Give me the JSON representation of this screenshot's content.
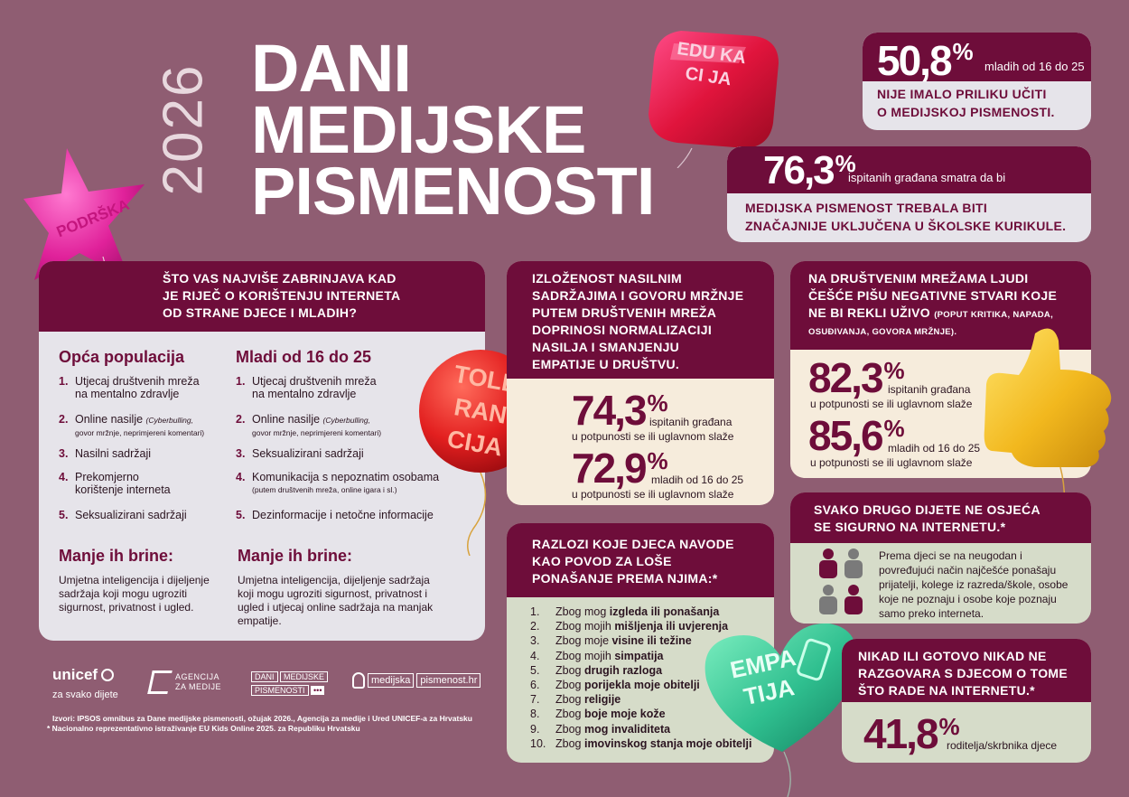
{
  "title": {
    "year": "2026",
    "line1": "DANI",
    "line2": "MEDIJSKE",
    "line3": "PISMENOSTI"
  },
  "balloons": {
    "edukacija": "EDU KA CI JA",
    "podrska": "PODRŠKA",
    "tolerancija": "TOLE RAN CIJA",
    "empatija": "EMPA TIJA"
  },
  "stat1": {
    "value": "50,8",
    "unit": "%",
    "desc": "mladih od 16 do 25",
    "text1": "NIJE IMALO PRILIKU UČITI",
    "text2": "O MEDIJSKOJ PISMENOSTI."
  },
  "stat2": {
    "value": "76,3",
    "unit": "%",
    "desc": "ispitanih građana smatra da bi",
    "text1": "MEDIJSKA PISMENOST TREBALA BITI",
    "text2": "ZNAČAJNIJE UKLJUČENA U ŠKOLSKE KURIKULE."
  },
  "worry": {
    "heading1": "ŠTO VAS NAJVIŠE ZABRINJAVA KAD",
    "heading2": "JE RIJEČ O KORIŠTENJU INTERNETA",
    "heading3": "OD STRANE DJECE I MLADIH?",
    "col1": {
      "title": "Opća populacija",
      "items": [
        {
          "n": "1.",
          "t": "Utjecaj društvenih mreža",
          "t2": "na mentalno zdravlje",
          "note": ""
        },
        {
          "n": "2.",
          "t": "Online nasilje",
          "t2": "",
          "note": "(Cyberbulling,",
          "note2": "govor mržnje, neprimjereni komentari)"
        },
        {
          "n": "3.",
          "t": "Nasilni sadržaji",
          "t2": "",
          "note": ""
        },
        {
          "n": "4.",
          "t": "Prekomjerno",
          "t2": "korištenje interneta",
          "note": ""
        },
        {
          "n": "5.",
          "t": "Seksualizirani sadržaji",
          "t2": "",
          "note": ""
        }
      ],
      "less_title": "Manje ih brine:",
      "less_text": "Umjetna inteligencija i dijeljenje sadržaja koji mogu ugroziti sigurnost, privatnost i ugled."
    },
    "col2": {
      "title": "Mladi od 16 do 25",
      "items": [
        {
          "n": "1.",
          "t": "Utjecaj društvenih mreža",
          "t2": "na mentalno zdravlje",
          "note": ""
        },
        {
          "n": "2.",
          "t": "Online nasilje",
          "t2": "",
          "note": "(Cyberbulling,",
          "note2": "govor mržnje, neprimjereni komentari)"
        },
        {
          "n": "3.",
          "t": "Seksualizirani sadržaji",
          "t2": "",
          "note": ""
        },
        {
          "n": "4.",
          "t": "Komunikacija s nepoznatim osobama",
          "t2": "",
          "note": "(putem društvenih mreža, online igara i sl.)"
        },
        {
          "n": "5.",
          "t": "Dezinformacije i netočne informacije",
          "t2": "",
          "note": ""
        }
      ],
      "less_title": "Manje ih brine:",
      "less_text": "Umjetna inteligencija, dijeljenje sadržaja koji mogu ugroziti sigurnost, privatnost i ugled i utjecaj online sadržaja na manjak empatije."
    }
  },
  "exposure": {
    "heading": [
      "IZLOŽENOST NASILNIM",
      "SADRŽAJIMA I GOVORU MRŽNJE",
      "PUTEM DRUŠTVENIH MREŽA",
      "DOPRINOSI NORMALIZACIJI",
      "NASILJA I SMANJENJU",
      "EMPATIJE U DRUŠTVU."
    ],
    "v1": "74,3",
    "d1a": "ispitanih građana",
    "d1b": "u potpunosti se ili uglavnom slaže",
    "v2": "72,9",
    "d2a": "mladih od 16 do 25",
    "d2b": "u potpunosti se ili uglavnom slaže",
    "unit": "%"
  },
  "negative": {
    "heading": [
      "NA DRUŠTVENIM MREŽAMA LJUDI",
      "ČEŠĆE PIŠU NEGATIVNE STVARI KOJE",
      "NE BI REKLI UŽIVO"
    ],
    "note1": "(POPUT KRITIKA, NAPADA,",
    "note2": "OSUĐIVANJA, GOVORA MRŽNJE).",
    "v1": "82,3",
    "d1a": "ispitanih građana",
    "d1b": "u potpunosti se ili uglavnom slaže",
    "v2": "85,6",
    "d2a": "mladih od 16 do 25",
    "d2b": "u potpunosti se ili uglavnom slaže",
    "unit": "%"
  },
  "reasons": {
    "heading": [
      "RAZLOZI KOJE DJECA NAVODE",
      "KAO POVOD ZA LOŠE",
      "PONAŠANJE PREMA NJIMA:*"
    ],
    "items": [
      {
        "n": "1.",
        "pre": "Zbog mog ",
        "bold": "izgleda ili ponašanja"
      },
      {
        "n": "2.",
        "pre": "Zbog mojih ",
        "bold": "mišljenja ili uvjerenja"
      },
      {
        "n": "3.",
        "pre": "Zbog moje ",
        "bold": "visine ili težine"
      },
      {
        "n": "4.",
        "pre": "Zbog mojih ",
        "bold": "simpatija"
      },
      {
        "n": "5.",
        "pre": "Zbog ",
        "bold": "drugih razloga"
      },
      {
        "n": "6.",
        "pre": "Zbog ",
        "bold": "porijekla moje obitelji"
      },
      {
        "n": "7.",
        "pre": "Zbog ",
        "bold": "religije"
      },
      {
        "n": "8.",
        "pre": "Zbog ",
        "bold": "boje moje kože"
      },
      {
        "n": "9.",
        "pre": "Zbog ",
        "bold": "mog invaliditeta"
      },
      {
        "n": "10.",
        "pre": "Zbog ",
        "bold": "imovinskog stanja moje obitelji"
      }
    ]
  },
  "safety": {
    "heading": [
      "SVAKO DRUGO DIJETE NE OSJEĆA",
      "SE SIGURNO NA INTERNETU.*"
    ],
    "text": "Prema djeci se na neugodan i povređujući način najčešće ponašaju prijatelji, kolege iz razreda/škole, osobe koje ne poznaju i osobe koje poznaju samo preko interneta."
  },
  "parents": {
    "heading": [
      "NIKAD ILI GOTOVO NIKAD NE",
      "RAZGOVARA S DJECOM O TOME",
      "ŠTO RADE NA INTERNETU.*"
    ],
    "value": "41,8",
    "unit": "%",
    "desc": "roditelja/skrbnika djece"
  },
  "footer": {
    "unicef": "unicef",
    "unicef_tag": "za svako dijete",
    "agency1": "AGENCIJA",
    "agency2": "ZA MEDIJE",
    "days1": "DANI",
    "days2": "MEDIJSKE",
    "days3": "PISMENOSTI",
    "site1": "medijska",
    "site2": "pismenost.hr",
    "src1": "Izvori: IPSOS omnibus za Dane medijske pismenosti, ožujak 2026., Agencija za medije i Ured UNICEF-a za Hrvatsku",
    "src2": "* Nacionalno reprezentativno istraživanje EU Kids Online 2025. za Republiku Hrvatsku"
  },
  "colors": {
    "background": "#8f5d72",
    "plum": "#6e0d3a",
    "cream": "#f6ecdc",
    "sage": "#d6dcc9",
    "grey": "#e6e4ea"
  }
}
